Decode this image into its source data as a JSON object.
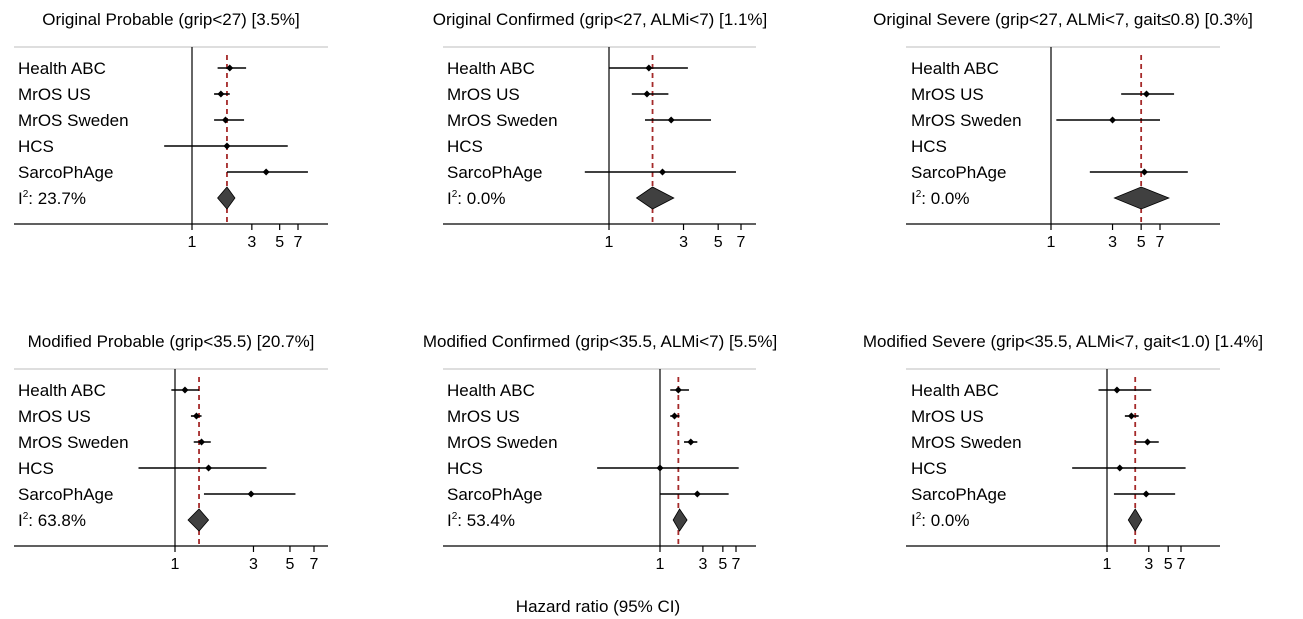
{
  "chart_data": [
    {
      "type": "forest",
      "title": "Original Probable (grip<27) [3.5%]",
      "x_scale": "log",
      "xlim": [
        0.4,
        10
      ],
      "ticks": [
        1,
        3,
        5,
        7
      ],
      "reference_line": 1.9,
      "studies": [
        {
          "name": "Health ABC",
          "estimate": 2.0,
          "ci": [
            1.6,
            2.7
          ]
        },
        {
          "name": "MrOS US",
          "estimate": 1.7,
          "ci": [
            1.5,
            2.0
          ]
        },
        {
          "name": "MrOS Sweden",
          "estimate": 1.85,
          "ci": [
            1.5,
            2.6
          ]
        },
        {
          "name": "HCS",
          "estimate": 1.9,
          "ci": [
            0.6,
            5.8
          ]
        },
        {
          "name": "SarcoPhAge",
          "estimate": 3.9,
          "ci": [
            1.9,
            8.4
          ]
        }
      ],
      "pooled": {
        "estimate": 1.9,
        "ci": [
          1.6,
          2.2
        ]
      },
      "i2": "23.7%"
    },
    {
      "type": "forest",
      "title": "Original Confirmed (grip<27, ALMi<7) [1.1%]",
      "x_scale": "log",
      "xlim": [
        0.4,
        10
      ],
      "ticks": [
        1,
        3,
        5,
        7
      ],
      "reference_line": 1.9,
      "studies": [
        {
          "name": "Health ABC",
          "estimate": 1.8,
          "ci": [
            1.0,
            3.2
          ]
        },
        {
          "name": "MrOS US",
          "estimate": 1.75,
          "ci": [
            1.4,
            2.4
          ]
        },
        {
          "name": "MrOS Sweden",
          "estimate": 2.5,
          "ci": [
            1.7,
            4.5
          ]
        },
        {
          "name": "HCS",
          "estimate": null,
          "ci": null
        },
        {
          "name": "SarcoPhAge",
          "estimate": 2.2,
          "ci": [
            0.7,
            6.5
          ]
        }
      ],
      "pooled": {
        "estimate": 1.9,
        "ci": [
          1.5,
          2.6
        ]
      },
      "i2": "0.0%"
    },
    {
      "type": "forest",
      "title": "Original Severe (grip<27, ALMi<7, gait≤0.8) [0.3%]",
      "x_scale": "log",
      "xlim": [
        0.4,
        10
      ],
      "ticks": [
        1,
        3,
        5,
        7
      ],
      "reference_line": 5.0,
      "studies": [
        {
          "name": "Health ABC",
          "estimate": null,
          "ci": null
        },
        {
          "name": "MrOS US",
          "estimate": 5.5,
          "ci": [
            3.5,
            9.0
          ]
        },
        {
          "name": "MrOS Sweden",
          "estimate": 3.0,
          "ci": [
            1.1,
            7.0
          ]
        },
        {
          "name": "HCS",
          "estimate": null,
          "ci": null
        },
        {
          "name": "SarcoPhAge",
          "estimate": 5.3,
          "ci": [
            2.0,
            11.5
          ]
        }
      ],
      "pooled": {
        "estimate": 5.0,
        "ci": [
          3.1,
          8.2
        ]
      },
      "i2": "0.0%"
    },
    {
      "type": "forest",
      "title": "Modified Probable (grip<35.5) [20.7%]",
      "x_scale": "log",
      "xlim": [
        0.55,
        9
      ],
      "ticks": [
        1,
        3,
        5,
        7
      ],
      "reference_line": 1.4,
      "studies": [
        {
          "name": "Health ABC",
          "estimate": 1.15,
          "ci": [
            0.95,
            1.4
          ]
        },
        {
          "name": "MrOS US",
          "estimate": 1.35,
          "ci": [
            1.25,
            1.45
          ]
        },
        {
          "name": "MrOS Sweden",
          "estimate": 1.45,
          "ci": [
            1.3,
            1.65
          ]
        },
        {
          "name": "HCS",
          "estimate": 1.6,
          "ci": [
            0.6,
            3.6
          ]
        },
        {
          "name": "SarcoPhAge",
          "estimate": 2.9,
          "ci": [
            1.5,
            5.4
          ]
        }
      ],
      "pooled": {
        "estimate": 1.4,
        "ci": [
          1.2,
          1.6
        ]
      },
      "i2": "63.8%"
    },
    {
      "type": "forest",
      "title": "Modified Confirmed (grip<35.5, ALMi<7) [5.5%]",
      "x_scale": "log",
      "xlim": [
        0.12,
        10
      ],
      "ticks": [
        1,
        3,
        5,
        7
      ],
      "reference_line": 1.6,
      "studies": [
        {
          "name": "Health ABC",
          "estimate": 1.6,
          "ci": [
            1.3,
            2.1
          ]
        },
        {
          "name": "MrOS US",
          "estimate": 1.45,
          "ci": [
            1.3,
            1.65
          ]
        },
        {
          "name": "MrOS Sweden",
          "estimate": 2.2,
          "ci": [
            1.85,
            2.6
          ]
        },
        {
          "name": "HCS",
          "estimate": 1.0,
          "ci": [
            0.2,
            7.5
          ]
        },
        {
          "name": "SarcoPhAge",
          "estimate": 2.6,
          "ci": [
            1.0,
            5.8
          ]
        }
      ],
      "pooled": {
        "estimate": 1.65,
        "ci": [
          1.4,
          2.0
        ]
      },
      "i2": "53.4%"
    },
    {
      "type": "forest",
      "title": "Modified Severe (grip<35.5, ALMi<7, gait<1.0) [1.4%]",
      "x_scale": "log",
      "xlim": [
        0.12,
        10
      ],
      "ticks": [
        1,
        3,
        5,
        7
      ],
      "reference_line": 2.1,
      "studies": [
        {
          "name": "Health ABC",
          "estimate": 1.3,
          "ci": [
            0.8,
            3.2
          ]
        },
        {
          "name": "MrOS US",
          "estimate": 1.9,
          "ci": [
            1.6,
            2.3
          ]
        },
        {
          "name": "MrOS Sweden",
          "estimate": 2.9,
          "ci": [
            2.1,
            3.9
          ]
        },
        {
          "name": "HCS",
          "estimate": 1.4,
          "ci": [
            0.4,
            7.9
          ]
        },
        {
          "name": "SarcoPhAge",
          "estimate": 2.8,
          "ci": [
            1.2,
            6.0
          ]
        }
      ],
      "pooled": {
        "estimate": 2.1,
        "ci": [
          1.75,
          2.5
        ]
      },
      "i2": "0.0%"
    }
  ],
  "x_axis_label": "Hazard ratio (95% CI)",
  "i2_prefix": "I",
  "i2_superscript": "2",
  "i2_separator": ": ",
  "colors": {
    "reference_line": "#a52a2a",
    "diamond": "#404040",
    "marker": "#000000",
    "ci_line": "#000000",
    "axis": "#000000",
    "frame": "#bdbdbd"
  }
}
